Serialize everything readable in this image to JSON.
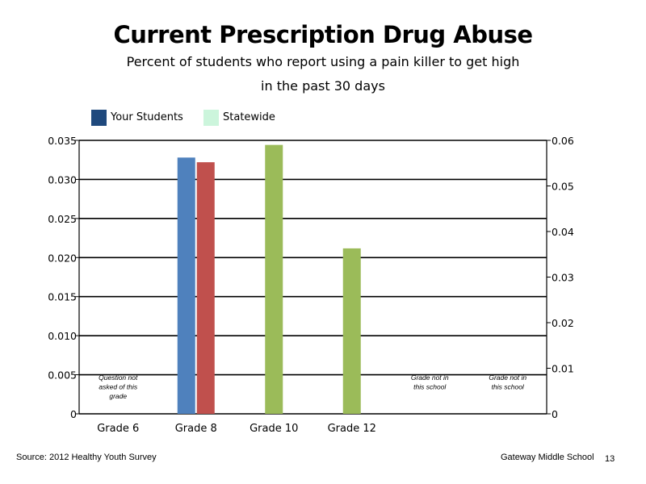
{
  "chart_data": {
    "type": "bar",
    "title": "Current Prescription Drug Abuse",
    "subtitle_lines": [
      "Percent of students who report using a pain killer to get high",
      "in the past 30 days"
    ],
    "categories": [
      "Grade 6",
      "Grade 8",
      "Grade 10",
      "Grade 12"
    ],
    "legend": [
      {
        "name": "Your Students",
        "color": "#1f497d"
      },
      {
        "name": "Statewide",
        "color": "#ccf5dc"
      }
    ],
    "bars": [
      {
        "category": "Grade 8",
        "value": 0.0328,
        "color": "#4f81bd",
        "axis": "left"
      },
      {
        "category": "Grade 8",
        "value": 0.0322,
        "color": "#c0504d",
        "axis": "left"
      },
      {
        "category": "Grade 10",
        "value": 0.059,
        "color": "#9bbb59",
        "axis": "right"
      },
      {
        "category": "Grade 12",
        "value": 0.0363,
        "color": "#9bbb59",
        "axis": "right"
      }
    ],
    "y_left": {
      "range": [
        0,
        0.035
      ],
      "ticks": [
        0,
        0.005,
        0.01,
        0.015,
        0.02,
        0.025,
        0.03,
        0.035
      ],
      "tick_labels": [
        "0",
        "0.005",
        "0.010",
        "0.015",
        "0.020",
        "0.025",
        "0.030",
        "0.035"
      ]
    },
    "y_right": {
      "range": [
        0,
        0.06
      ],
      "ticks": [
        0,
        0.01,
        0.02,
        0.03,
        0.04,
        0.05,
        0.06
      ],
      "tick_labels": [
        "0",
        "0.01",
        "0.02",
        "0.03",
        "0.04",
        "0.05",
        "0.06"
      ]
    },
    "grid": true,
    "notes": [
      {
        "lines": [
          "Question not",
          "asked of this",
          "grade"
        ],
        "slot": 0
      },
      {
        "lines": [
          "Grade not in",
          "this school"
        ],
        "slot": 4
      },
      {
        "lines": [
          "Grade not in",
          "this school"
        ],
        "slot": 5
      }
    ]
  },
  "footer": {
    "source": "Source: 2012 Healthy Youth Survey",
    "school": "Gateway Middle  School",
    "page": "13"
  }
}
